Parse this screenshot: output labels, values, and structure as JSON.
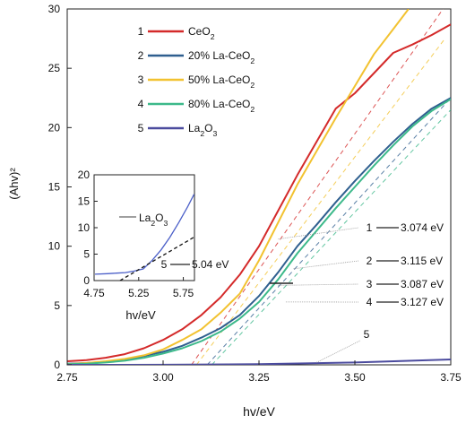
{
  "colors": {
    "CeO2": "#d42a2a",
    "La20": "#2f5f8f",
    "La50": "#f2c230",
    "La80": "#3cb98a",
    "La2O3": "#4b4b9e",
    "inset_line": "#4b5fc8"
  },
  "chart_data": [
    {
      "type": "line",
      "xlabel": "hv/eV",
      "ylabel": "(Ahv)²",
      "xlim": [
        2.75,
        3.75
      ],
      "ylim": [
        0,
        30
      ],
      "xticks": [
        "2.75",
        "3.00",
        "3.25",
        "3.50",
        "3.75"
      ],
      "yticks": [
        "0",
        "5",
        "10",
        "15",
        "20",
        "25",
        "30"
      ],
      "legend": {
        "placement": "top-left",
        "entries": [
          {
            "num": "1",
            "label": "CeO",
            "sub": "2",
            "color_key": "CeO2"
          },
          {
            "num": "2",
            "label": "20% La-CeO",
            "sub": "2",
            "color_key": "La20"
          },
          {
            "num": "3",
            "label": "50% La-CeO",
            "sub": "2",
            "color_key": "La50"
          },
          {
            "num": "4",
            "label": "80% La-CeO",
            "sub": "2",
            "color_key": "La80"
          },
          {
            "num": "5",
            "label": "La",
            "sub": "2",
            "label2": "O",
            "sub2": "3",
            "color_key": "La2O3"
          }
        ]
      },
      "series": [
        {
          "name": "CeO2",
          "color_key": "CeO2",
          "x": [
            2.75,
            2.8,
            2.85,
            2.9,
            2.95,
            3.0,
            3.05,
            3.1,
            3.15,
            3.2,
            3.25,
            3.3,
            3.35,
            3.4,
            3.45,
            3.5,
            3.55,
            3.6,
            3.65,
            3.7,
            3.75
          ],
          "y": [
            0.3,
            0.4,
            0.6,
            0.9,
            1.4,
            2.1,
            3.0,
            4.2,
            5.7,
            7.6,
            10.0,
            13.0,
            16.0,
            18.8,
            21.6,
            22.9,
            24.6,
            26.3,
            27.0,
            27.8,
            28.7
          ]
        },
        {
          "name": "20% La-CeO2",
          "color_key": "La20",
          "x": [
            2.75,
            2.8,
            2.85,
            2.9,
            2.95,
            3.0,
            3.05,
            3.1,
            3.15,
            3.2,
            3.25,
            3.3,
            3.35,
            3.4,
            3.45,
            3.5,
            3.55,
            3.6,
            3.65,
            3.7,
            3.75
          ],
          "y": [
            0.1,
            0.15,
            0.25,
            0.45,
            0.75,
            1.1,
            1.6,
            2.3,
            3.1,
            4.2,
            5.8,
            7.8,
            10.0,
            11.8,
            13.7,
            15.5,
            17.2,
            18.8,
            20.3,
            21.6,
            22.5
          ]
        },
        {
          "name": "50% La-CeO2",
          "color_key": "La50",
          "x": [
            2.75,
            2.8,
            2.85,
            2.9,
            2.95,
            3.0,
            3.05,
            3.1,
            3.15,
            3.2,
            3.25,
            3.3,
            3.35,
            3.4,
            3.45,
            3.5,
            3.55,
            3.6,
            3.64
          ],
          "y": [
            0.05,
            0.15,
            0.3,
            0.5,
            0.8,
            1.3,
            2.1,
            3.0,
            4.4,
            6.0,
            8.8,
            12.0,
            15.2,
            18.0,
            20.8,
            23.5,
            26.2,
            28.3,
            30.0
          ]
        },
        {
          "name": "80% La-CeO2",
          "color_key": "La80",
          "x": [
            2.75,
            2.8,
            2.85,
            2.9,
            2.95,
            3.0,
            3.05,
            3.1,
            3.15,
            3.2,
            3.25,
            3.3,
            3.35,
            3.4,
            3.45,
            3.5,
            3.55,
            3.6,
            3.65,
            3.7,
            3.75
          ],
          "y": [
            0.05,
            0.1,
            0.2,
            0.35,
            0.6,
            0.95,
            1.4,
            2.0,
            2.8,
            3.9,
            5.3,
            7.2,
            9.4,
            11.3,
            13.2,
            15.0,
            16.8,
            18.5,
            20.1,
            21.4,
            22.4
          ]
        },
        {
          "name": "La2O3",
          "color_key": "La2O3",
          "x": [
            2.75,
            3.0,
            3.25,
            3.5,
            3.75
          ],
          "y": [
            0.0,
            0.01,
            0.05,
            0.2,
            0.45
          ]
        }
      ],
      "tangents": [
        {
          "color_key": "CeO2",
          "x": [
            3.074,
            3.73
          ],
          "y": [
            0,
            30
          ]
        },
        {
          "color_key": "La20",
          "x": [
            3.115,
            3.75
          ],
          "y": [
            0,
            22.5
          ]
        },
        {
          "color_key": "La50",
          "x": [
            3.087,
            3.735
          ],
          "y": [
            0,
            27.5
          ]
        },
        {
          "color_key": "La80",
          "x": [
            3.127,
            3.75
          ],
          "y": [
            0,
            21.5
          ]
        }
      ],
      "annotations": [
        {
          "num": "1",
          "value": "3.074 eV",
          "x": 3.3,
          "y": 10.6
        },
        {
          "num": "2",
          "value": "3.115 eV",
          "x": 3.34,
          "y": 8.1
        },
        {
          "num": "3",
          "value": "3.087 eV",
          "x": 3.3,
          "y": 6.7
        },
        {
          "num": "4",
          "value": "3.127 eV",
          "x": 3.32,
          "y": 5.3
        },
        {
          "num": "5",
          "value": "",
          "x": 3.4,
          "y": 0.2
        }
      ]
    },
    {
      "type": "line",
      "title": "",
      "xlabel": "hv/eV",
      "ylabel": "",
      "xlim": [
        4.75,
        5.875
      ],
      "ylim": [
        0,
        20
      ],
      "xticks": [
        "4.75",
        "5.25",
        "5.75"
      ],
      "yticks": [
        "0",
        "5",
        "10",
        "15",
        "20"
      ],
      "legend_label": "La",
      "legend_sub": "2",
      "legend_label2": "O",
      "legend_sub2": "3",
      "annotation": {
        "num": "5",
        "value": "5.04 eV"
      },
      "series": [
        {
          "name": "La2O3",
          "color_key": "inset_line",
          "x": [
            4.76,
            4.9,
            5.0,
            5.1,
            5.2,
            5.3,
            5.4,
            5.5,
            5.6,
            5.7,
            5.8,
            5.87
          ],
          "y": [
            1.2,
            1.3,
            1.4,
            1.5,
            1.8,
            2.2,
            3.8,
            5.8,
            8.2,
            11.0,
            14.0,
            16.3
          ]
        },
        {
          "name": "tangent",
          "color_key": "",
          "dashed": true,
          "x": [
            5.04,
            5.87
          ],
          "y": [
            0,
            8.2
          ]
        }
      ]
    }
  ]
}
